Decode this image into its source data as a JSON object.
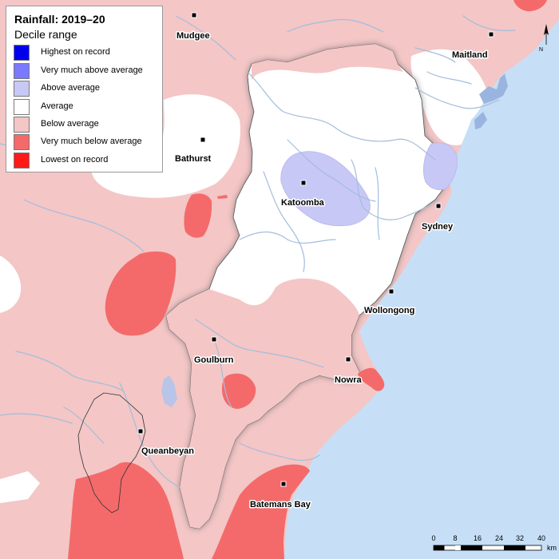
{
  "legend": {
    "title": "Rainfall: 2019–20",
    "subtitle": "Decile range",
    "items": [
      {
        "label": "Highest on record",
        "color": "#0000ee"
      },
      {
        "label": "Very much above average",
        "color": "#7a7aff"
      },
      {
        "label": "Above average",
        "color": "#c8c8f6"
      },
      {
        "label": "Average",
        "color": "#ffffff"
      },
      {
        "label": "Below average",
        "color": "#f4c6c6"
      },
      {
        "label": "Very much below average",
        "color": "#f46a6a"
      },
      {
        "label": "Lowest on record",
        "color": "#ff1a1a"
      }
    ]
  },
  "towns": {
    "mudgee": "Mudgee",
    "maitland": "Maitland",
    "bathurst": "Bathurst",
    "katoomba": "Katoomba",
    "sydney": "Sydney",
    "wollongong": "Wollongong",
    "goulburn": "Goulburn",
    "nowra": "Nowra",
    "queanbeyan": "Queanbeyan",
    "batemans_bay": "Batemans Bay"
  },
  "scale_bar": {
    "ticks": [
      "0",
      "8",
      "16",
      "24",
      "32",
      "40"
    ],
    "unit": "km"
  },
  "north_arrow": {
    "letter": "N"
  },
  "colors": {
    "ocean": "#c6dff6",
    "below_average": "#f4c6c6",
    "very_much_below": "#f46a6a",
    "above_average": "#c8c8f6",
    "average": "#ffffff",
    "rivers": "#9ab8d8"
  }
}
